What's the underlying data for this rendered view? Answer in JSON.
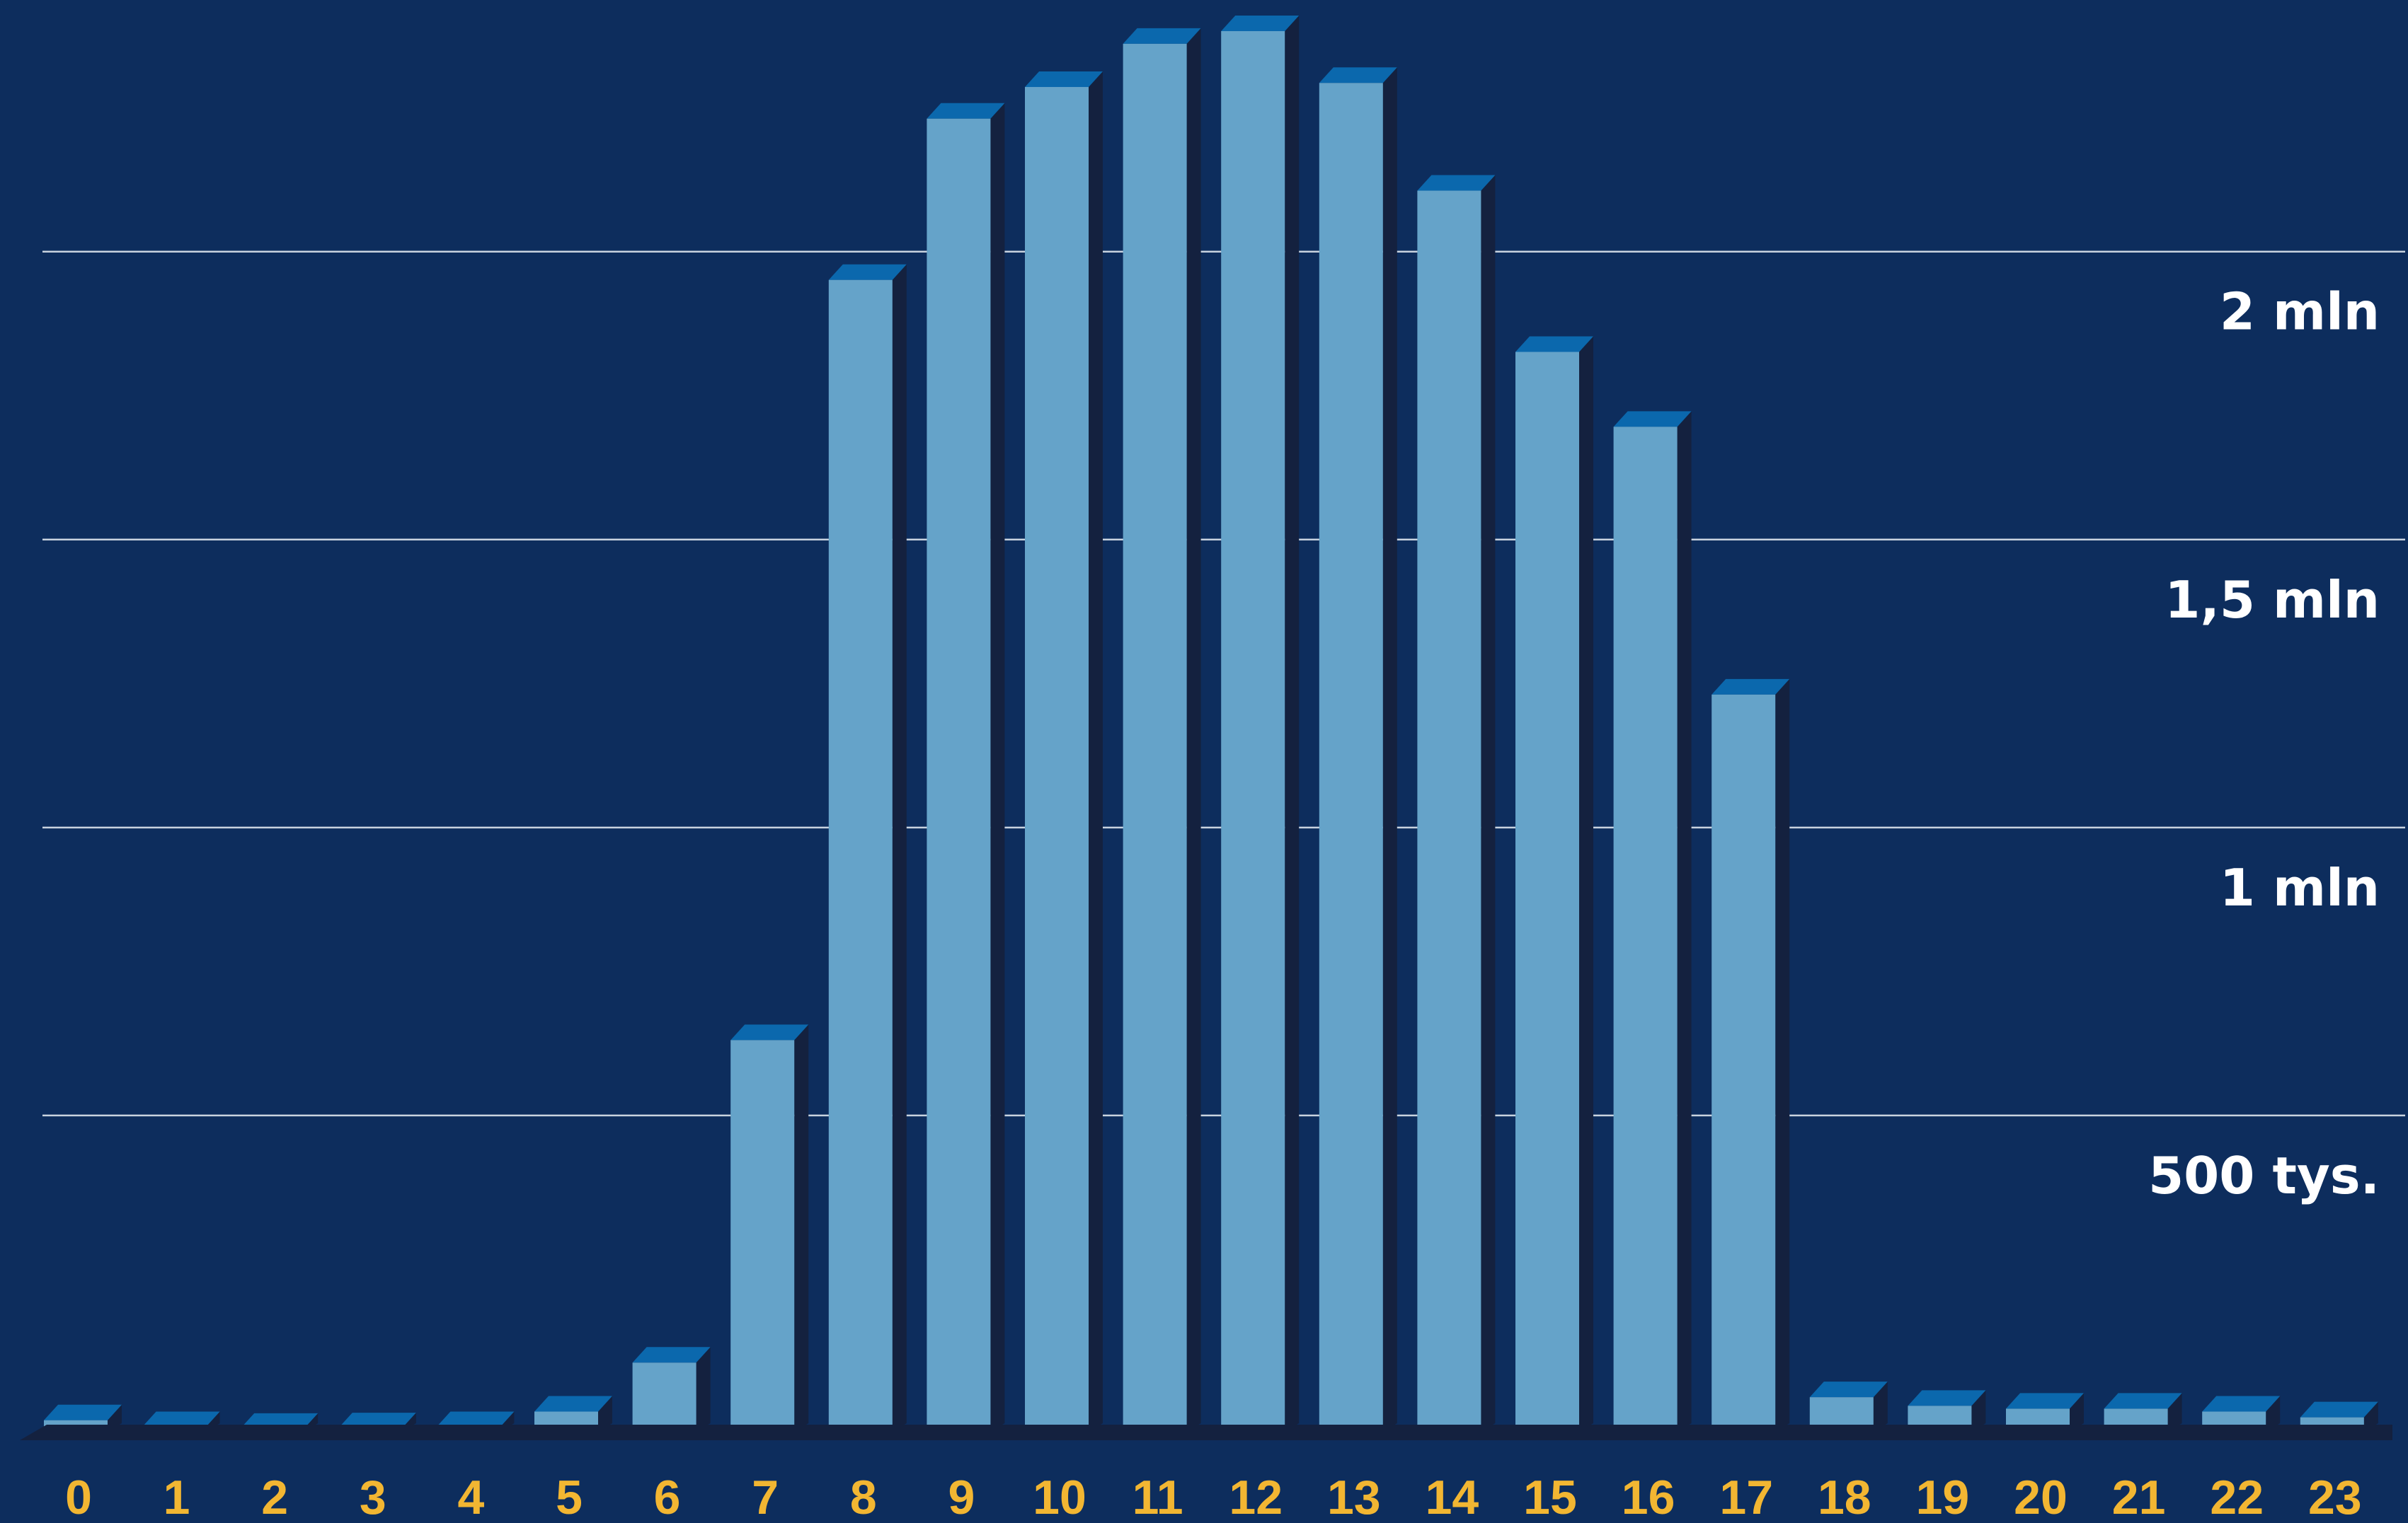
{
  "colors": {
    "background": "#0d2d5d",
    "bar_face": "#65a3c9",
    "bar_top": "#0b68ad",
    "bar_side": "#14213f",
    "floor": "#14213f",
    "gridline": "#c9d3df",
    "y_tick_label": "#ffffff",
    "x_tick_label": "#f2b632"
  },
  "chart_data": {
    "type": "bar",
    "categories": [
      "0",
      "1",
      "2",
      "3",
      "4",
      "5",
      "6",
      "7",
      "8",
      "9",
      "10",
      "11",
      "12",
      "13",
      "14",
      "15",
      "16",
      "17",
      "18",
      "19",
      "20",
      "21",
      "22",
      "23"
    ],
    "values": [
      20000,
      8000,
      5000,
      6000,
      8000,
      35000,
      120000,
      680000,
      2000000,
      2280000,
      2335000,
      2410000,
      2432000,
      2342000,
      2155000,
      1875000,
      1745000,
      1280000,
      60000,
      45000,
      40000,
      40000,
      35000,
      25000
    ],
    "ylim": [
      0,
      2500000
    ],
    "gridlines": [
      500000,
      1000000,
      1500000,
      2000000
    ],
    "y_tick_labels": [
      {
        "value": 500000,
        "label": "500 tys."
      },
      {
        "value": 1000000,
        "label": "1 mln"
      },
      {
        "value": 1500000,
        "label": "1,5 mln"
      },
      {
        "value": 2000000,
        "label": "2 mln"
      }
    ],
    "title": "",
    "xlabel": "",
    "ylabel": "",
    "grid": true,
    "style": "3d-bar"
  }
}
